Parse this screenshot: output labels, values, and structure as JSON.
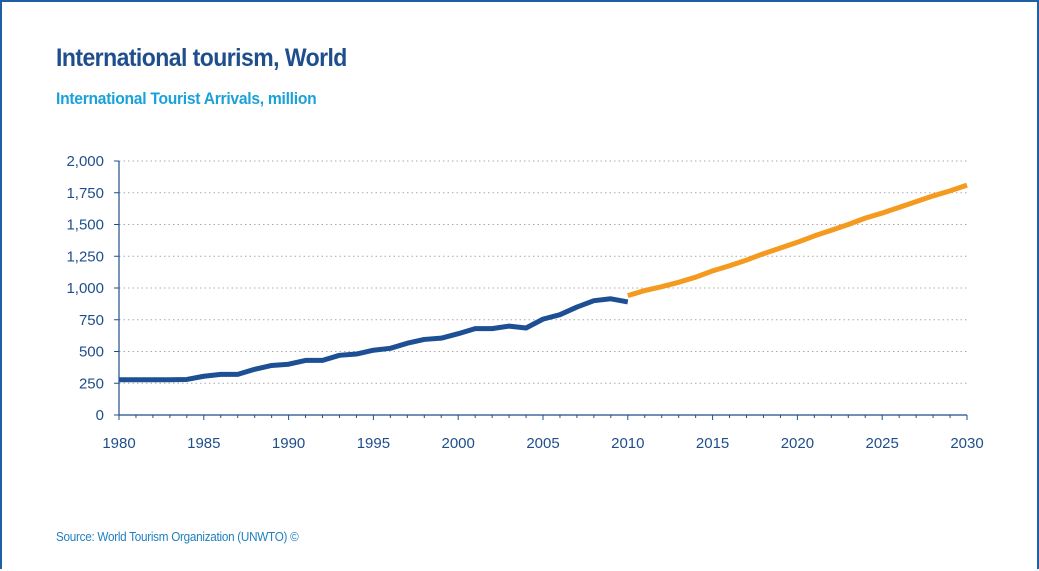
{
  "header": {
    "title": "International tourism, World",
    "subtitle": "International Tourist Arrivals, million"
  },
  "footer": {
    "source": "Source: World Tourism Organization (UNWTO) ©"
  },
  "colors": {
    "actual": "#1c4f94",
    "forecast": "#f39a1f",
    "grid": "#a9a9a9",
    "axis": "#1f4e8c"
  },
  "chart_data": {
    "type": "line",
    "title": "International tourism, World",
    "subtitle": "International Tourist Arrivals, million",
    "xlabel": "",
    "ylabel": "",
    "xlim": [
      1980,
      2030
    ],
    "ylim": [
      0,
      2000
    ],
    "x_ticks": [
      1980,
      1985,
      1990,
      1995,
      2000,
      2005,
      2010,
      2015,
      2020,
      2025,
      2030
    ],
    "x_tick_labels": [
      "1980",
      "1985",
      "1990",
      "1995",
      "2000",
      "2005",
      "2010",
      "2015",
      "2020",
      "2025",
      "2030"
    ],
    "y_ticks": [
      0,
      250,
      500,
      750,
      1000,
      1250,
      1500,
      1750,
      2000
    ],
    "y_tick_labels": [
      "0",
      "250",
      "500",
      "750",
      "1,000",
      "1,250",
      "1,500",
      "1,750",
      "2,000"
    ],
    "grid": "horizontal dotted",
    "series": [
      {
        "x": [
          1980,
          1981,
          1982,
          1983,
          1984,
          1985,
          1986,
          1987,
          1988,
          1989,
          1990,
          1991,
          1992,
          1993,
          1994,
          1995,
          1996,
          1997,
          1998,
          1999,
          2000,
          2001,
          2002,
          2003,
          2004,
          2005,
          2006,
          2007,
          2008,
          2009,
          2010
        ],
        "values": [
          278,
          278,
          278,
          278,
          280,
          305,
          320,
          320,
          360,
          390,
          400,
          430,
          430,
          470,
          480,
          510,
          525,
          565,
          595,
          605,
          640,
          680,
          680,
          700,
          685,
          755,
          790,
          850,
          900,
          915,
          890
        ]
      },
      {
        "x": [
          2010,
          2011,
          2012,
          2013,
          2014,
          2015,
          2016,
          2017,
          2018,
          2019,
          2020,
          2021,
          2022,
          2023,
          2024,
          2025,
          2026,
          2027,
          2028,
          2029,
          2030
        ],
        "values": [
          940,
          980,
          1010,
          1045,
          1085,
          1135,
          1175,
          1220,
          1270,
          1315,
          1360,
          1410,
          1455,
          1500,
          1550,
          1590,
          1635,
          1680,
          1725,
          1765,
          1810
        ]
      }
    ]
  }
}
